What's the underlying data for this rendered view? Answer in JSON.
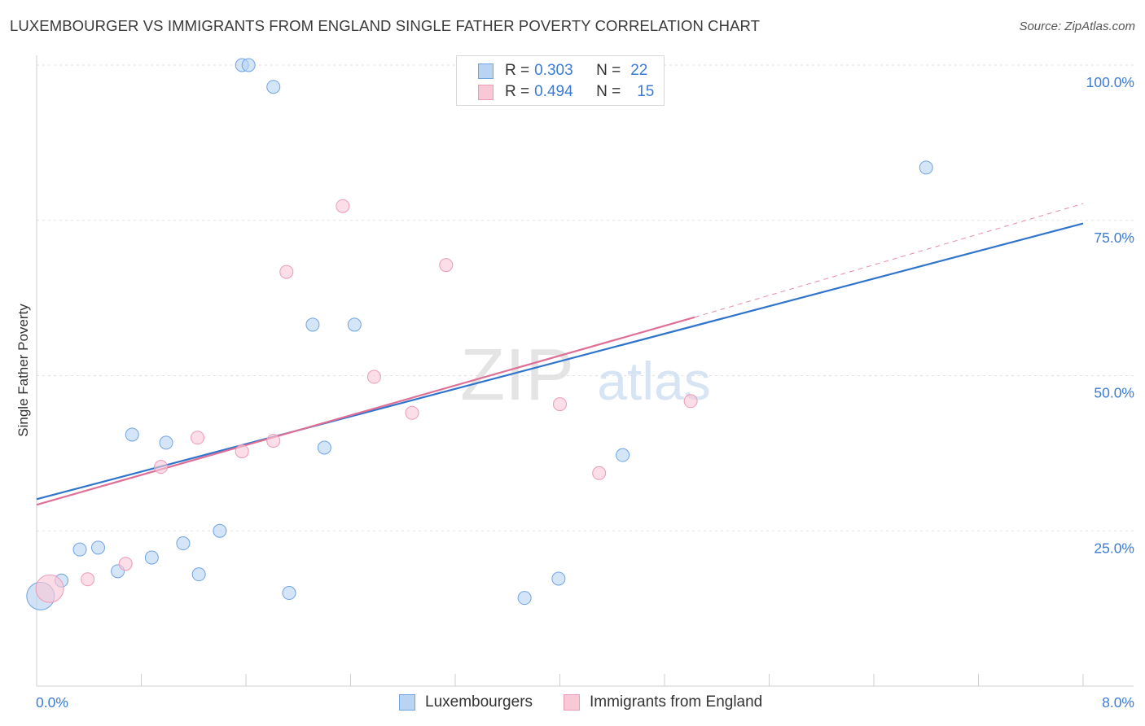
{
  "title": "LUXEMBOURGER VS IMMIGRANTS FROM ENGLAND SINGLE FATHER POVERTY CORRELATION CHART",
  "source": "Source: ZipAtlas.com",
  "watermark": {
    "zip": "ZIP",
    "atlas": "atlas"
  },
  "legend_top": {
    "rows": [
      {
        "r_label": "R =",
        "r_value": "0.303",
        "n_label": "N =",
        "n_value": "22"
      },
      {
        "r_label": "R =",
        "r_value": "0.494",
        "n_label": "N =",
        "n_value": "15"
      }
    ]
  },
  "chart_data": {
    "type": "scatter",
    "title": "LUXEMBOURGER VS IMMIGRANTS FROM ENGLAND SINGLE FATHER POVERTY CORRELATION CHART",
    "xlabel": "",
    "ylabel": "Single Father Poverty",
    "xlim": [
      0,
      8
    ],
    "ylim": [
      0,
      105
    ],
    "x_tick_labels": [
      "0.0%",
      "8.0%"
    ],
    "y_ticks": [
      25,
      50,
      75,
      100
    ],
    "y_tick_labels": [
      "25.0%",
      "50.0%",
      "75.0%",
      "100.0%"
    ],
    "grid": true,
    "series": [
      {
        "name": "Luxembourgers",
        "color": "#6fa3e4",
        "fill": "#b9d3f3",
        "line_color": "#2f74cc",
        "r": 0.303,
        "n": 22,
        "trend": {
          "x0": 0,
          "y0": 30.1,
          "x1": 8,
          "y1": 74.5
        },
        "points": [
          {
            "x": 0.03,
            "y": 14.5,
            "big": true
          },
          {
            "x": 0.19,
            "y": 17.0
          },
          {
            "x": 0.33,
            "y": 22.0
          },
          {
            "x": 0.47,
            "y": 22.3
          },
          {
            "x": 0.62,
            "y": 18.5
          },
          {
            "x": 0.73,
            "y": 40.5
          },
          {
            "x": 0.88,
            "y": 20.7
          },
          {
            "x": 0.99,
            "y": 39.2
          },
          {
            "x": 1.12,
            "y": 23.0
          },
          {
            "x": 1.24,
            "y": 18.0
          },
          {
            "x": 1.4,
            "y": 25.0
          },
          {
            "x": 1.57,
            "y": 100.0
          },
          {
            "x": 1.62,
            "y": 100.0
          },
          {
            "x": 1.81,
            "y": 96.5
          },
          {
            "x": 1.93,
            "y": 15.0
          },
          {
            "x": 2.11,
            "y": 58.2
          },
          {
            "x": 2.2,
            "y": 38.4
          },
          {
            "x": 2.43,
            "y": 58.2
          },
          {
            "x": 3.73,
            "y": 14.2
          },
          {
            "x": 3.99,
            "y": 17.3
          },
          {
            "x": 4.48,
            "y": 37.2
          },
          {
            "x": 6.8,
            "y": 83.5
          }
        ]
      },
      {
        "name": "Immigrants from England",
        "color": "#ee9ab5",
        "fill": "#f9c8d7",
        "line_color": "#e06f96",
        "r": 0.494,
        "n": 15,
        "trend": {
          "x0": 0,
          "y0": 29.2,
          "x1": 5.03,
          "y1": 59.4
        },
        "trend_extension": {
          "x0": 5.03,
          "y0": 59.4,
          "x1": 8,
          "y1": 77.7
        },
        "points": [
          {
            "x": 0.1,
            "y": 15.7,
            "big": true
          },
          {
            "x": 0.39,
            "y": 17.2
          },
          {
            "x": 0.68,
            "y": 19.7
          },
          {
            "x": 0.95,
            "y": 35.3
          },
          {
            "x": 1.23,
            "y": 40.0
          },
          {
            "x": 1.57,
            "y": 37.8
          },
          {
            "x": 1.81,
            "y": 39.5
          },
          {
            "x": 1.91,
            "y": 66.7
          },
          {
            "x": 2.34,
            "y": 77.3
          },
          {
            "x": 2.58,
            "y": 49.8
          },
          {
            "x": 2.87,
            "y": 44.0
          },
          {
            "x": 3.13,
            "y": 67.8
          },
          {
            "x": 4.0,
            "y": 45.4
          },
          {
            "x": 4.3,
            "y": 34.3
          },
          {
            "x": 5.0,
            "y": 45.9
          }
        ]
      }
    ]
  }
}
